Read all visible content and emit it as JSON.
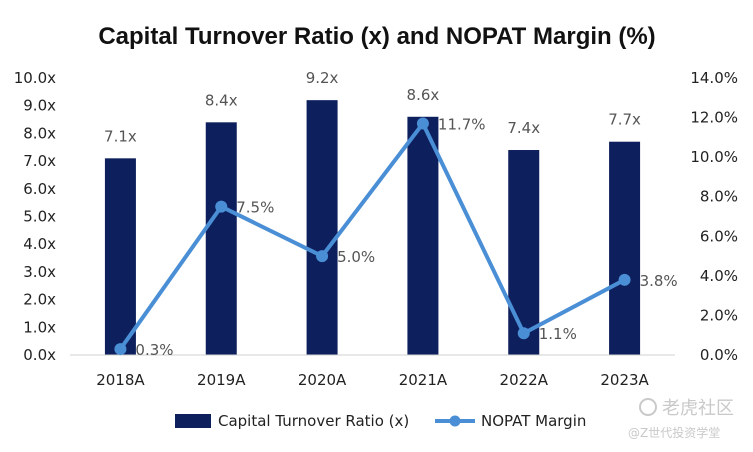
{
  "chart_data": {
    "type": "bar",
    "title": "Capital Turnover Ratio (x) and NOPAT Margin (%)",
    "categories": [
      "2018A",
      "2019A",
      "2020A",
      "2021A",
      "2022A",
      "2023A"
    ],
    "series": [
      {
        "name": "Capital Turnover Ratio (x)",
        "type": "bar",
        "axis": "left",
        "values": [
          7.1,
          8.4,
          9.2,
          8.6,
          7.4,
          7.7
        ],
        "labels": [
          "7.1x",
          "8.4x",
          "9.2x",
          "8.6x",
          "7.4x",
          "7.7x"
        ],
        "color": "#0d1f5c"
      },
      {
        "name": "NOPAT Margin",
        "type": "line",
        "axis": "right",
        "values": [
          0.3,
          7.5,
          5.0,
          11.7,
          1.1,
          3.8
        ],
        "labels": [
          "0.3%",
          "7.5%",
          "5.0%",
          "11.7%",
          "1.1%",
          "3.8%"
        ],
        "color": "#4a8fd6"
      }
    ],
    "y_left": {
      "min": 0,
      "max": 10,
      "step": 1,
      "ticks": [
        "0.0x",
        "1.0x",
        "2.0x",
        "3.0x",
        "4.0x",
        "5.0x",
        "6.0x",
        "7.0x",
        "8.0x",
        "9.0x",
        "10.0x"
      ]
    },
    "y_right": {
      "min": 0,
      "max": 14,
      "step": 2,
      "ticks": [
        "0.0%",
        "2.0%",
        "4.0%",
        "6.0%",
        "8.0%",
        "10.0%",
        "12.0%",
        "14.0%"
      ]
    },
    "grid": false,
    "legend_position": "bottom"
  },
  "watermark": {
    "brand": "老虎社区",
    "handle": "@Z世代投资学堂"
  }
}
